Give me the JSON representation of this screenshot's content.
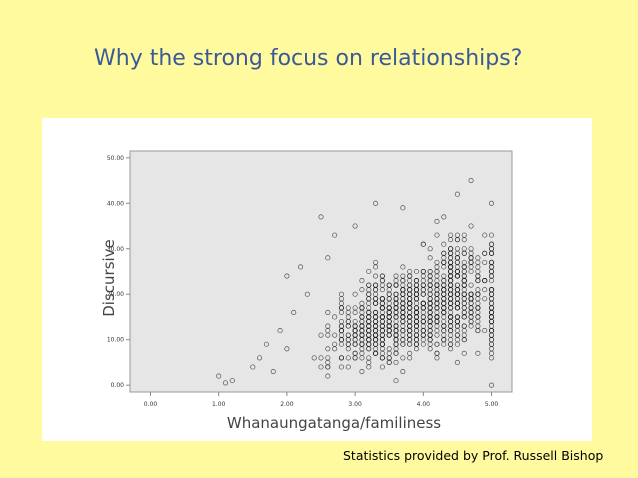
{
  "slide": {
    "title": "Why the strong focus on relationships?",
    "credit": "Statistics provided by Prof. Russell Bishop"
  },
  "colors": {
    "background": "#FFFA9E",
    "title": "#3B5998",
    "plot_background": "#E6E6E6",
    "marker_stroke": "#222222"
  },
  "chart_data": {
    "type": "scatter",
    "title": "",
    "xlabel": "Whanaungatanga/familiness",
    "ylabel": "Discursive",
    "xlim": [
      -0.3,
      5.3
    ],
    "ylim": [
      -1.5,
      51.5
    ],
    "x_ticks": [
      0,
      1,
      2,
      3,
      4,
      5
    ],
    "x_tick_labels": [
      "0.00",
      "1.00",
      "2.00",
      "3.00",
      "4.00",
      "5.00"
    ],
    "y_ticks": [
      0,
      10,
      20,
      30,
      40,
      50
    ],
    "y_tick_labels": [
      "0.00",
      "10.00",
      "20.00",
      "30.00",
      "40.00",
      "50.00"
    ],
    "grid": false,
    "marker": "open-circle",
    "approx_point_count": 1100,
    "points_sample": [
      [
        1.0,
        2.0
      ],
      [
        1.1,
        0.5
      ],
      [
        1.2,
        1.0
      ],
      [
        1.5,
        4.0
      ],
      [
        1.6,
        6.0
      ],
      [
        1.7,
        9.0
      ],
      [
        1.8,
        3.0
      ],
      [
        1.9,
        12.0
      ],
      [
        2.0,
        24.0
      ],
      [
        2.0,
        8.0
      ],
      [
        2.1,
        16.0
      ],
      [
        2.2,
        26.0
      ],
      [
        2.3,
        20.0
      ],
      [
        2.4,
        6.0
      ],
      [
        2.5,
        37.0
      ],
      [
        2.6,
        28.0
      ],
      [
        2.7,
        33.0
      ],
      [
        2.8,
        18.0
      ],
      [
        3.0,
        35.0
      ],
      [
        3.2,
        25.0
      ],
      [
        3.3,
        40.0
      ],
      [
        3.5,
        22.0
      ],
      [
        3.7,
        39.0
      ],
      [
        3.9,
        15.0
      ],
      [
        4.1,
        28.0
      ],
      [
        4.2,
        36.0
      ],
      [
        4.3,
        10.0
      ],
      [
        4.5,
        42.0
      ],
      [
        4.6,
        30.0
      ],
      [
        4.7,
        45.0
      ],
      [
        4.8,
        20.0
      ],
      [
        4.9,
        33.0
      ],
      [
        5.0,
        40.0
      ],
      [
        5.0,
        0.0
      ],
      [
        5.0,
        25.0
      ],
      [
        5.0,
        10.0
      ]
    ],
    "density_note_points": [
      {
        "x_center": 3.9,
        "y_center": 16,
        "x_spread": 0.7,
        "y_spread": 7,
        "share": 0.55
      },
      {
        "x_center": 3.2,
        "y_center": 11,
        "x_spread": 0.55,
        "y_spread": 6,
        "share": 0.2
      },
      {
        "x_center": 4.5,
        "y_center": 23,
        "x_spread": 0.35,
        "y_spread": 8,
        "share": 0.2
      },
      {
        "x_center": 5.0,
        "y_center": 20,
        "x_spread": 0.0,
        "y_spread": 11,
        "share": 0.05
      }
    ]
  }
}
